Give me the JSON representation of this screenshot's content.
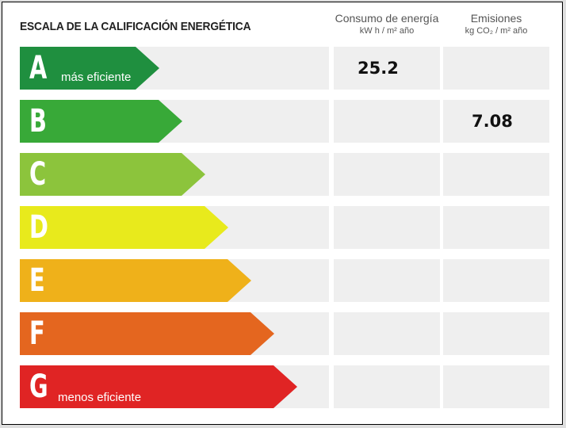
{
  "title": "ESCALA DE LA CALIFICACIÓN ENERGÉTICA",
  "columns": {
    "consumo": {
      "main": "Consumo de energía",
      "unit": "kW h / m² año"
    },
    "emisiones": {
      "main": "Emisiones",
      "unit": "kg CO₂ / m² año"
    }
  },
  "ratings": [
    {
      "letter": "A",
      "sublabel": "más eficiente",
      "color": "#1f8f3f",
      "consumo": "25.2",
      "emisiones": ""
    },
    {
      "letter": "B",
      "sublabel": "",
      "color": "#38a938",
      "consumo": "",
      "emisiones": "7.08"
    },
    {
      "letter": "C",
      "sublabel": "",
      "color": "#8cc43c",
      "consumo": "",
      "emisiones": ""
    },
    {
      "letter": "D",
      "sublabel": "",
      "color": "#e8ea1c",
      "consumo": "",
      "emisiones": ""
    },
    {
      "letter": "E",
      "sublabel": "",
      "color": "#efb11a",
      "consumo": "",
      "emisiones": ""
    },
    {
      "letter": "F",
      "sublabel": "",
      "color": "#e4661f",
      "consumo": "",
      "emisiones": ""
    },
    {
      "letter": "G",
      "sublabel": "menos eficiente",
      "color": "#e02424",
      "consumo": "",
      "emisiones": ""
    }
  ]
}
